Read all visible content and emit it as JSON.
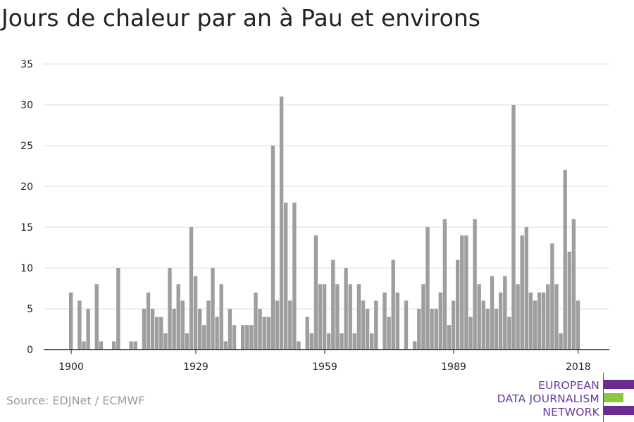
{
  "title": "Jours de chaleur par an à Pau et environs",
  "source": "Source: EDJNet / ECMWF",
  "logo": {
    "lines": [
      "EUROPEAN",
      "DATA JOURNALISM",
      "NETWORK"
    ],
    "colors": {
      "purple": "#6a2c91",
      "green": "#8dc63f"
    }
  },
  "colors": {
    "bar": "#9e9e9e",
    "grid": "#dddddd",
    "axis": "#222222"
  },
  "chart_data": {
    "type": "bar",
    "title": "Jours de chaleur par an à Pau et environs",
    "xlabel": "",
    "ylabel": "",
    "ylim": [
      0,
      35
    ],
    "yticks": [
      0,
      5,
      10,
      15,
      20,
      25,
      30,
      35
    ],
    "xticks": [
      1900,
      1929,
      1959,
      1989,
      2018
    ],
    "grid": true,
    "categories": [
      1900,
      1901,
      1902,
      1903,
      1904,
      1905,
      1906,
      1907,
      1908,
      1909,
      1910,
      1911,
      1912,
      1913,
      1914,
      1915,
      1916,
      1917,
      1918,
      1919,
      1920,
      1921,
      1922,
      1923,
      1924,
      1925,
      1926,
      1927,
      1928,
      1929,
      1930,
      1931,
      1932,
      1933,
      1934,
      1935,
      1936,
      1937,
      1938,
      1939,
      1940,
      1941,
      1942,
      1943,
      1944,
      1945,
      1946,
      1947,
      1948,
      1949,
      1950,
      1951,
      1952,
      1953,
      1954,
      1955,
      1956,
      1957,
      1958,
      1959,
      1960,
      1961,
      1962,
      1963,
      1964,
      1965,
      1966,
      1967,
      1968,
      1969,
      1970,
      1971,
      1972,
      1973,
      1974,
      1975,
      1976,
      1977,
      1978,
      1979,
      1980,
      1981,
      1982,
      1983,
      1984,
      1985,
      1986,
      1987,
      1988,
      1989,
      1990,
      1991,
      1992,
      1993,
      1994,
      1995,
      1996,
      1997,
      1998,
      1999,
      2000,
      2001,
      2002,
      2003,
      2004,
      2005,
      2006,
      2007,
      2008,
      2009,
      2010,
      2011,
      2012,
      2013,
      2014,
      2015,
      2016,
      2017,
      2018
    ],
    "values": [
      7,
      0,
      6,
      1,
      5,
      0,
      8,
      1,
      0,
      0,
      1,
      10,
      0,
      0,
      1,
      1,
      0,
      5,
      7,
      5,
      4,
      4,
      2,
      10,
      5,
      8,
      6,
      2,
      15,
      9,
      5,
      3,
      6,
      10,
      4,
      8,
      1,
      5,
      3,
      0,
      3,
      3,
      3,
      7,
      5,
      4,
      4,
      25,
      6,
      31,
      18,
      6,
      18,
      1,
      0,
      4,
      2,
      14,
      8,
      8,
      2,
      11,
      8,
      2,
      10,
      8,
      2,
      8,
      6,
      5,
      2,
      6,
      0,
      7,
      4,
      11,
      7,
      0,
      6,
      0,
      1,
      5,
      8,
      15,
      5,
      5,
      7,
      16,
      3,
      6,
      11,
      14,
      14,
      4,
      16,
      8,
      6,
      5,
      9,
      5,
      7,
      9,
      4,
      30,
      8,
      14,
      15,
      7,
      6,
      7,
      7,
      8,
      13,
      8,
      2,
      22,
      12,
      16,
      6
    ]
  }
}
